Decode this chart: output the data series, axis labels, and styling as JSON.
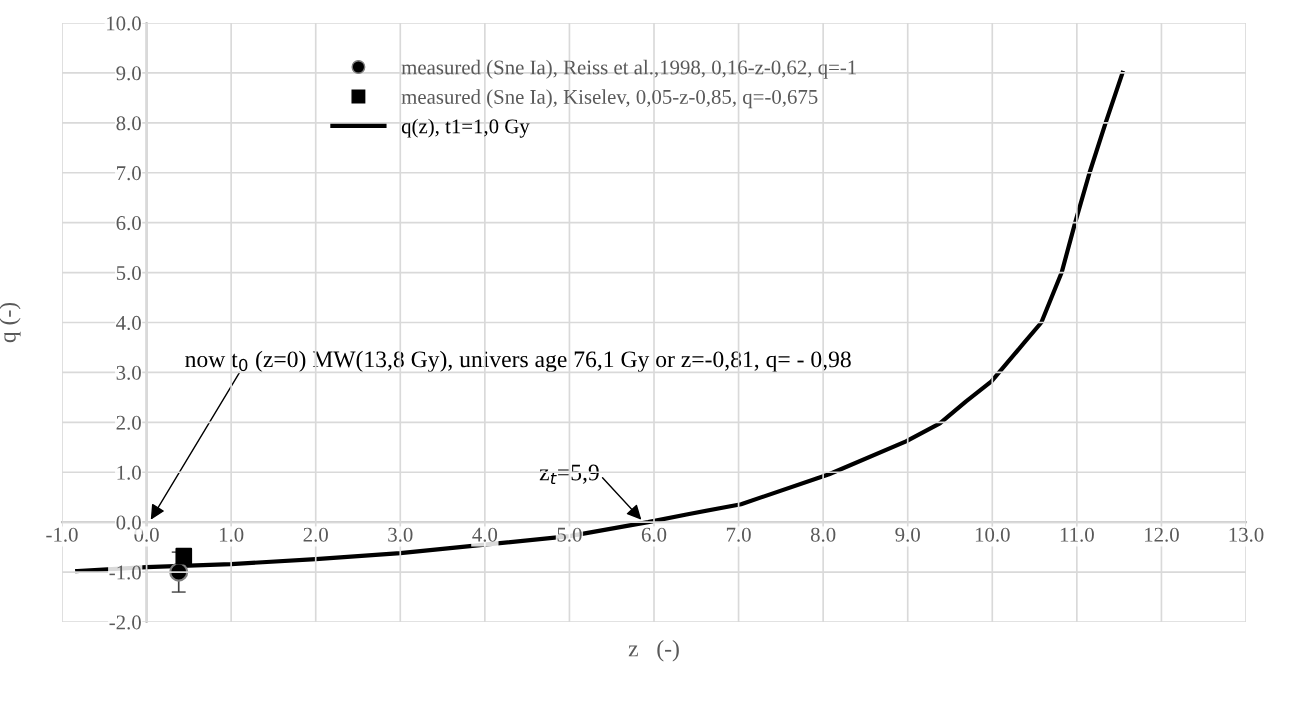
{
  "chart_data": {
    "type": "line",
    "xlabel": "z   (-)",
    "ylabel": "q (-)",
    "xlim": [
      -1,
      13
    ],
    "xticks": [
      {
        "value": -1,
        "label": "-1.0"
      },
      {
        "value": 0,
        "label": "0.0"
      },
      {
        "value": 1,
        "label": "1.0"
      },
      {
        "value": 2,
        "label": "2.0"
      },
      {
        "value": 3,
        "label": "3.0"
      },
      {
        "value": 4,
        "label": "4.0"
      },
      {
        "value": 5,
        "label": "5.0"
      },
      {
        "value": 6,
        "label": "6.0"
      },
      {
        "value": 7,
        "label": "7.0"
      },
      {
        "value": 8,
        "label": "8.0"
      },
      {
        "value": 9,
        "label": "9.0"
      },
      {
        "value": 10,
        "label": "10.0"
      },
      {
        "value": 11,
        "label": "11.0"
      },
      {
        "value": 12,
        "label": "12.0"
      },
      {
        "value": 13,
        "label": "13.0"
      }
    ],
    "ylim": [
      -2,
      10
    ],
    "yticks": [
      {
        "value": -2,
        "label": "-2.0"
      },
      {
        "value": -1,
        "label": "-1.0"
      },
      {
        "value": 0,
        "label": "0.0"
      },
      {
        "value": 1,
        "label": "1.0"
      },
      {
        "value": 2,
        "label": "2.0"
      },
      {
        "value": 3,
        "label": "3.0"
      },
      {
        "value": 4,
        "label": "4.0"
      },
      {
        "value": 5,
        "label": "5.0"
      },
      {
        "value": 6,
        "label": "6.0"
      },
      {
        "value": 7,
        "label": "7.0"
      },
      {
        "value": 8,
        "label": "8.0"
      },
      {
        "value": 9,
        "label": "9.0"
      },
      {
        "value": 10,
        "label": "10.0"
      }
    ],
    "grid": true,
    "legend": "top",
    "series": [
      {
        "name": "measured (Sne Ia), Reiss et al.,1998, 0,16-z-0,62, q=-1",
        "type": "scatter",
        "marker": "circle",
        "color": "#000000",
        "x": [
          0.38
        ],
        "values": [
          -1.0
        ],
        "errors": [
          0.4
        ]
      },
      {
        "name": "measured (Sne Ia), Kiselev, 0,05-z-0,85, q=-0,675",
        "type": "scatter",
        "marker": "square",
        "color": "#000000",
        "x": [
          0.44
        ],
        "values": [
          -0.68
        ]
      },
      {
        "name": "q(z), t1=1,0 Gy",
        "color": "#000000",
        "x": [
          -0.82,
          0,
          1,
          2,
          3,
          4,
          5,
          5.93,
          6.4,
          7.03,
          8.07,
          8.98,
          9.38,
          9.69,
          9.99,
          10.38,
          10.58,
          10.82,
          10.98,
          11.15,
          11.34,
          11.54
        ],
        "values": [
          -0.98,
          -0.9,
          -0.84,
          -0.74,
          -0.62,
          -0.45,
          -0.28,
          0,
          0.16,
          0.36,
          0.96,
          1.62,
          1.98,
          2.42,
          2.82,
          3.6,
          4.0,
          5.0,
          6.0,
          7.0,
          8.0,
          9.0
        ]
      }
    ],
    "annotations": [
      "now t$_{0}$ (z=0) MW(13,8 Gy), univers age 76,1 Gy or z=-0,81, q= - 0,98",
      {
        "text": "z$_{t}$=5,9",
        "x": 5.85,
        "y": 0.05
      }
    ]
  }
}
